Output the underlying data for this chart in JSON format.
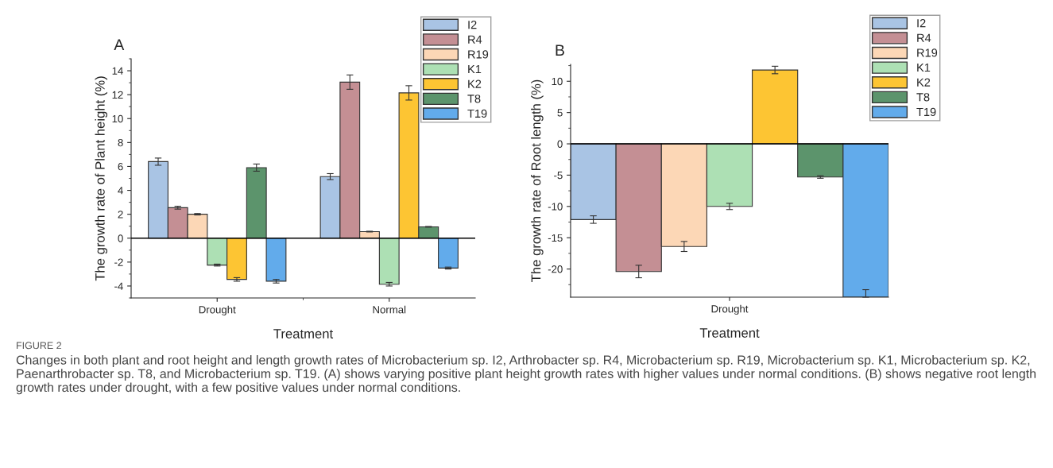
{
  "chart_data": [
    {
      "type": "bar",
      "title": "A",
      "xlabel": "Treatment",
      "ylabel": "The growth rate of Plant height (%)",
      "categories": [
        "Drought",
        "Normal"
      ],
      "series": [
        {
          "name": "I2",
          "color": "#a9c4e4",
          "values": [
            6.4,
            5.15
          ],
          "errors": [
            0.3,
            0.25
          ]
        },
        {
          "name": "R4",
          "color": "#c48f94",
          "values": [
            2.55,
            13.05
          ],
          "errors": [
            0.12,
            0.6
          ]
        },
        {
          "name": "R19",
          "color": "#fcd7b6",
          "values": [
            2.0,
            0.55
          ],
          "errors": [
            0.06,
            0.03
          ]
        },
        {
          "name": "K1",
          "color": "#ade0b4",
          "values": [
            -2.25,
            -3.85
          ],
          "errors": [
            0.08,
            0.15
          ]
        },
        {
          "name": "K2",
          "color": "#fdc533",
          "values": [
            -3.45,
            12.15
          ],
          "errors": [
            0.15,
            0.6
          ]
        },
        {
          "name": "T8",
          "color": "#5c946c",
          "values": [
            5.9,
            0.95
          ],
          "errors": [
            0.3,
            0.03
          ]
        },
        {
          "name": "T19",
          "color": "#62abeb",
          "values": [
            -3.6,
            -2.5
          ],
          "errors": [
            0.15,
            0.08
          ]
        }
      ],
      "ylim": [
        -5,
        15
      ],
      "yticks": [
        -4,
        -2,
        0,
        2,
        4,
        6,
        8,
        10,
        12,
        14
      ],
      "grid": false,
      "legend": "top right",
      "ref_lines": [
        {
          "axis": "y",
          "value": 0,
          "color": "#000000",
          "line_style": "solid"
        }
      ],
      "annotations": [
        "FIGURE 2",
        "Changes in both plant and root height and length growth rates of Microbacterium sp. I2, Arthrobacter sp. R4, Microbacterium sp. R19, Microbacterium sp. K1, Microbacterium sp. K2, Paenarthrobacter sp. T8, and Microbacterium sp. T19. (A) shows varying positive plant height growth rates with higher values under normal conditions. (B) shows negative root length growth rates under drought, with a few positive values under normal conditions."
      ]
    },
    {
      "type": "bar",
      "title": "B",
      "xlabel": "Treatment",
      "ylabel": "The growth rate of Root length (%)",
      "categories": [
        "Drought"
      ],
      "series": [
        {
          "name": "I2",
          "color": "#a9c4e4",
          "values": [
            -12.1
          ],
          "errors": [
            0.6
          ]
        },
        {
          "name": "R4",
          "color": "#c48f94",
          "values": [
            -20.4
          ],
          "errors": [
            1.0
          ]
        },
        {
          "name": "R19",
          "color": "#fcd7b6",
          "values": [
            -16.4
          ],
          "errors": [
            0.8
          ]
        },
        {
          "name": "K1",
          "color": "#ade0b4",
          "values": [
            -10.0
          ],
          "errors": [
            0.5
          ]
        },
        {
          "name": "K2",
          "color": "#fdc533",
          "values": [
            11.8
          ],
          "errors": [
            0.6
          ]
        },
        {
          "name": "T8",
          "color": "#5c946c",
          "values": [
            -5.3
          ],
          "errors": [
            0.2
          ]
        },
        {
          "name": "T19",
          "color": "#62abeb",
          "values": [
            -24.5
          ],
          "errors": [
            [
              -24.5,
              -23.3
            ]
          ]
        }
      ],
      "ylim": [
        -24.5,
        12.7
      ],
      "yticks": [
        -20,
        -15,
        -10,
        -5,
        0,
        5,
        10
      ],
      "grid": false,
      "legend": "top right",
      "ref_lines": [
        {
          "axis": "y",
          "value": 0,
          "color": "#000000",
          "line_style": "solid"
        }
      ]
    }
  ]
}
